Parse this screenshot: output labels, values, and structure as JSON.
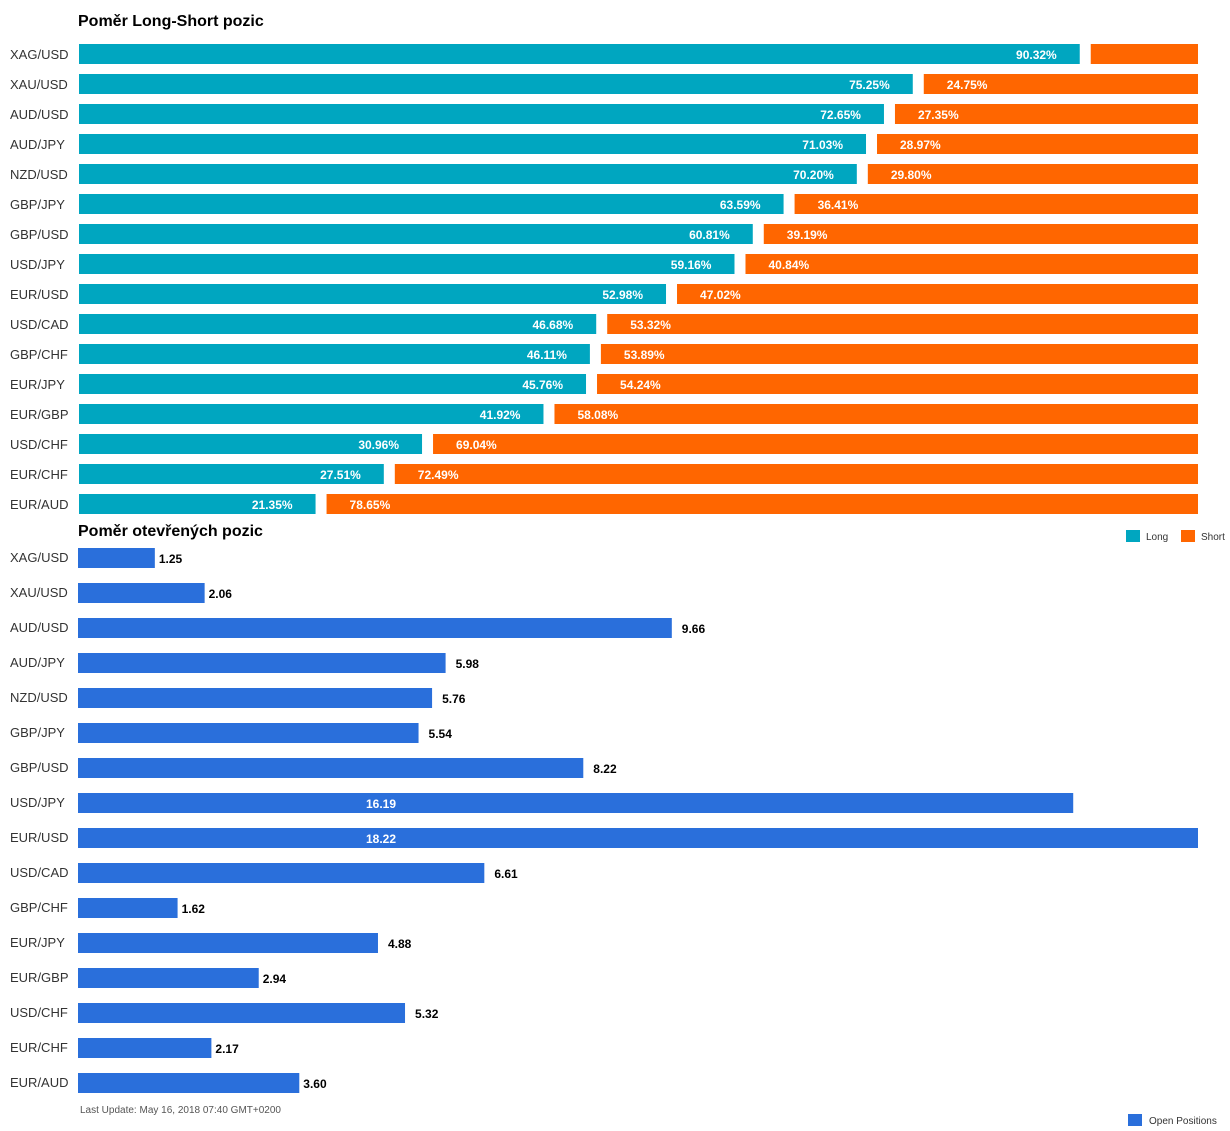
{
  "chart_data": [
    {
      "type": "bar",
      "orientation": "horizontal",
      "stacked": true,
      "title": "Poměr Long-Short pozic",
      "categories": [
        "XAG/USD",
        "XAU/USD",
        "AUD/USD",
        "AUD/JPY",
        "NZD/USD",
        "GBP/JPY",
        "GBP/USD",
        "USD/JPY",
        "EUR/USD",
        "USD/CAD",
        "GBP/CHF",
        "EUR/JPY",
        "EUR/GBP",
        "USD/CHF",
        "EUR/CHF",
        "EUR/AUD"
      ],
      "series": [
        {
          "name": "Long",
          "color": "#00a6c0",
          "values": [
            90.32,
            75.25,
            72.65,
            71.03,
            70.2,
            63.59,
            60.81,
            59.16,
            52.98,
            46.68,
            46.11,
            45.76,
            41.92,
            30.96,
            27.51,
            21.35
          ],
          "labels": [
            "90.32%",
            "75.25%",
            "72.65%",
            "71.03%",
            "70.20%",
            "63.59%",
            "60.81%",
            "59.16%",
            "52.98%",
            "46.68%",
            "46.11%",
            "45.76%",
            "41.92%",
            "30.96%",
            "27.51%",
            "21.35%"
          ]
        },
        {
          "name": "Short",
          "color": "#ff6600",
          "values": [
            9.68,
            24.75,
            27.35,
            28.97,
            29.8,
            36.41,
            39.19,
            40.84,
            47.02,
            53.32,
            53.89,
            54.24,
            58.08,
            69.04,
            72.49,
            78.65
          ],
          "labels": [
            "",
            "24.75%",
            "27.35%",
            "28.97%",
            "29.80%",
            "36.41%",
            "39.19%",
            "40.84%",
            "47.02%",
            "53.32%",
            "53.89%",
            "54.24%",
            "58.08%",
            "69.04%",
            "72.49%",
            "78.65%"
          ]
        }
      ],
      "xlim": [
        0,
        100
      ],
      "legend": "bottom-right"
    },
    {
      "type": "bar",
      "orientation": "horizontal",
      "title": "Poměr otevřených pozic",
      "categories": [
        "XAG/USD",
        "XAU/USD",
        "AUD/USD",
        "AUD/JPY",
        "NZD/USD",
        "GBP/JPY",
        "GBP/USD",
        "USD/JPY",
        "EUR/USD",
        "USD/CAD",
        "GBP/CHF",
        "EUR/JPY",
        "EUR/GBP",
        "USD/CHF",
        "EUR/CHF",
        "EUR/AUD"
      ],
      "series": [
        {
          "name": "Open Positions",
          "color": "#2a6fdb",
          "values": [
            1.25,
            2.06,
            9.66,
            5.98,
            5.76,
            5.54,
            8.22,
            16.19,
            18.22,
            6.61,
            1.62,
            4.88,
            2.94,
            5.32,
            2.17,
            3.6
          ],
          "labels": [
            "1.25",
            "2.06",
            "9.66",
            "5.98",
            "5.76",
            "5.54",
            "8.22",
            "16.19",
            "18.22",
            "6.61",
            "1.62",
            "4.88",
            "2.94",
            "5.32",
            "2.17",
            "3.60"
          ]
        }
      ],
      "xlim": [
        0,
        18.22
      ],
      "legend": "bottom-right"
    }
  ],
  "footer": {
    "last_update": "Last Update: May 16, 2018 07:40 GMT+0200"
  }
}
